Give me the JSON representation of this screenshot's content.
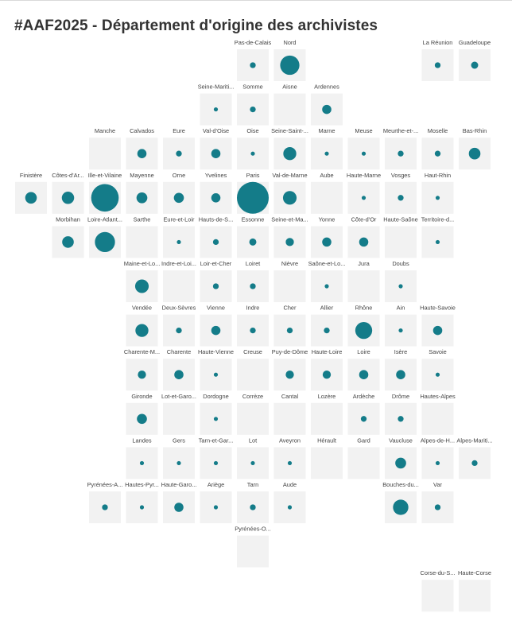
{
  "chart_data": {
    "type": "tile-grid-map",
    "title": "#AAF2025 - Département d'origine des archivistes",
    "colors": {
      "tile": "#f2f2f2",
      "bubble": "#147c89",
      "label": "#444444"
    },
    "cells": [
      {
        "name": "Pas-de-Calais",
        "col": 6,
        "row": 0,
        "value": 2
      },
      {
        "name": "Nord",
        "col": 7,
        "row": 0,
        "value": 22
      },
      {
        "name": "La Réunion",
        "col": 11,
        "row": 0,
        "value": 2
      },
      {
        "name": "Guadeloupe",
        "col": 12,
        "row": 0,
        "value": 3
      },
      {
        "name": "Seine-Mariti...",
        "col": 5,
        "row": 1,
        "value": 1
      },
      {
        "name": "Somme",
        "col": 6,
        "row": 1,
        "value": 2
      },
      {
        "name": "Aisne",
        "col": 7,
        "row": 1,
        "value": 0
      },
      {
        "name": "Ardennes",
        "col": 8,
        "row": 1,
        "value": 5
      },
      {
        "name": "Manche",
        "col": 2,
        "row": 2,
        "value": 0
      },
      {
        "name": "Calvados",
        "col": 3,
        "row": 2,
        "value": 5
      },
      {
        "name": "Eure",
        "col": 4,
        "row": 2,
        "value": 2
      },
      {
        "name": "Val-d'Oise",
        "col": 5,
        "row": 2,
        "value": 5
      },
      {
        "name": "Oise",
        "col": 6,
        "row": 2,
        "value": 1
      },
      {
        "name": "Seine-Saint-...",
        "col": 7,
        "row": 2,
        "value": 10
      },
      {
        "name": "Marne",
        "col": 8,
        "row": 2,
        "value": 1
      },
      {
        "name": "Meuse",
        "col": 9,
        "row": 2,
        "value": 1
      },
      {
        "name": "Meurthe-et-...",
        "col": 10,
        "row": 2,
        "value": 2
      },
      {
        "name": "Moselle",
        "col": 11,
        "row": 2,
        "value": 2
      },
      {
        "name": "Bas-Rhin",
        "col": 12,
        "row": 2,
        "value": 8
      },
      {
        "name": "Finistère",
        "col": 0,
        "row": 3,
        "value": 8
      },
      {
        "name": "Côtes-d'Ar...",
        "col": 1,
        "row": 3,
        "value": 9
      },
      {
        "name": "Ille-et-Vilaine",
        "col": 2,
        "row": 3,
        "value": 45
      },
      {
        "name": "Mayenne",
        "col": 3,
        "row": 3,
        "value": 7
      },
      {
        "name": "Orne",
        "col": 4,
        "row": 3,
        "value": 6
      },
      {
        "name": "Yvelines",
        "col": 5,
        "row": 3,
        "value": 5
      },
      {
        "name": "Paris",
        "col": 6,
        "row": 3,
        "value": 60
      },
      {
        "name": "Val-de-Marne",
        "col": 7,
        "row": 3,
        "value": 11
      },
      {
        "name": "Aube",
        "col": 8,
        "row": 3,
        "value": 0
      },
      {
        "name": "Haute-Marne",
        "col": 9,
        "row": 3,
        "value": 1
      },
      {
        "name": "Vosges",
        "col": 10,
        "row": 3,
        "value": 2
      },
      {
        "name": "Haut-Rhin",
        "col": 11,
        "row": 3,
        "value": 1
      },
      {
        "name": "Morbihan",
        "col": 1,
        "row": 4,
        "value": 8
      },
      {
        "name": "Loire-Atlant...",
        "col": 2,
        "row": 4,
        "value": 24
      },
      {
        "name": "Sarthe",
        "col": 3,
        "row": 4,
        "value": 0
      },
      {
        "name": "Eure-et-Loir",
        "col": 4,
        "row": 4,
        "value": 1
      },
      {
        "name": "Hauts-de-S...",
        "col": 5,
        "row": 4,
        "value": 2
      },
      {
        "name": "Essonne",
        "col": 6,
        "row": 4,
        "value": 3
      },
      {
        "name": "Seine-et-Ma...",
        "col": 7,
        "row": 4,
        "value": 4
      },
      {
        "name": "Yonne",
        "col": 8,
        "row": 4,
        "value": 5
      },
      {
        "name": "Côte-d'Or",
        "col": 9,
        "row": 4,
        "value": 5
      },
      {
        "name": "Haute-Saône",
        "col": 10,
        "row": 4,
        "value": 0
      },
      {
        "name": "Territoire-d...",
        "col": 11,
        "row": 4,
        "value": 1
      },
      {
        "name": "Maine-et-Lo...",
        "col": 3,
        "row": 5,
        "value": 11
      },
      {
        "name": "Indre-et-Loi...",
        "col": 4,
        "row": 5,
        "value": 0
      },
      {
        "name": "Loir-et-Cher",
        "col": 5,
        "row": 5,
        "value": 2
      },
      {
        "name": "Loiret",
        "col": 6,
        "row": 5,
        "value": 2
      },
      {
        "name": "Nièvre",
        "col": 7,
        "row": 5,
        "value": 0
      },
      {
        "name": "Saône-et-Lo...",
        "col": 8,
        "row": 5,
        "value": 1
      },
      {
        "name": "Jura",
        "col": 9,
        "row": 5,
        "value": 0
      },
      {
        "name": "Doubs",
        "col": 10,
        "row": 5,
        "value": 1
      },
      {
        "name": "Vendée",
        "col": 3,
        "row": 6,
        "value": 10
      },
      {
        "name": "Deux-Sèvres",
        "col": 4,
        "row": 6,
        "value": 2
      },
      {
        "name": "Vienne",
        "col": 5,
        "row": 6,
        "value": 5
      },
      {
        "name": "Indre",
        "col": 6,
        "row": 6,
        "value": 2
      },
      {
        "name": "Cher",
        "col": 7,
        "row": 6,
        "value": 2
      },
      {
        "name": "Allier",
        "col": 8,
        "row": 6,
        "value": 2
      },
      {
        "name": "Rhône",
        "col": 9,
        "row": 6,
        "value": 17
      },
      {
        "name": "Ain",
        "col": 10,
        "row": 6,
        "value": 1
      },
      {
        "name": "Haute-Savoie",
        "col": 11,
        "row": 6,
        "value": 5
      },
      {
        "name": "Charente-M...",
        "col": 3,
        "row": 7,
        "value": 4
      },
      {
        "name": "Charente",
        "col": 4,
        "row": 7,
        "value": 5
      },
      {
        "name": "Haute-Vienne",
        "col": 5,
        "row": 7,
        "value": 1
      },
      {
        "name": "Creuse",
        "col": 6,
        "row": 7,
        "value": 0
      },
      {
        "name": "Puy-de-Dôme",
        "col": 7,
        "row": 7,
        "value": 4
      },
      {
        "name": "Haute-Loire",
        "col": 8,
        "row": 7,
        "value": 4
      },
      {
        "name": "Loire",
        "col": 9,
        "row": 7,
        "value": 5
      },
      {
        "name": "Isère",
        "col": 10,
        "row": 7,
        "value": 5
      },
      {
        "name": "Savoie",
        "col": 11,
        "row": 7,
        "value": 1
      },
      {
        "name": "Gironde",
        "col": 3,
        "row": 8,
        "value": 6
      },
      {
        "name": "Lot-et-Garo...",
        "col": 4,
        "row": 8,
        "value": 0
      },
      {
        "name": "Dordogne",
        "col": 5,
        "row": 8,
        "value": 1
      },
      {
        "name": "Corrèze",
        "col": 6,
        "row": 8,
        "value": 0
      },
      {
        "name": "Cantal",
        "col": 7,
        "row": 8,
        "value": 0
      },
      {
        "name": "Lozère",
        "col": 8,
        "row": 8,
        "value": 0
      },
      {
        "name": "Ardèche",
        "col": 9,
        "row": 8,
        "value": 2
      },
      {
        "name": "Drôme",
        "col": 10,
        "row": 8,
        "value": 2
      },
      {
        "name": "Hautes-Alpes",
        "col": 11,
        "row": 8,
        "value": 0
      },
      {
        "name": "Landes",
        "col": 3,
        "row": 9,
        "value": 1
      },
      {
        "name": "Gers",
        "col": 4,
        "row": 9,
        "value": 1
      },
      {
        "name": "Tarn-et-Gar...",
        "col": 5,
        "row": 9,
        "value": 1
      },
      {
        "name": "Lot",
        "col": 6,
        "row": 9,
        "value": 1
      },
      {
        "name": "Aveyron",
        "col": 7,
        "row": 9,
        "value": 1
      },
      {
        "name": "Hérault",
        "col": 8,
        "row": 9,
        "value": 0
      },
      {
        "name": "Gard",
        "col": 9,
        "row": 9,
        "value": 0
      },
      {
        "name": "Vaucluse",
        "col": 10,
        "row": 9,
        "value": 7
      },
      {
        "name": "Alpes-de-H...",
        "col": 11,
        "row": 9,
        "value": 1
      },
      {
        "name": "Alpes-Mariti...",
        "col": 12,
        "row": 9,
        "value": 2
      },
      {
        "name": "Pyrénées-A...",
        "col": 2,
        "row": 10,
        "value": 2
      },
      {
        "name": "Hautes-Pyr...",
        "col": 3,
        "row": 10,
        "value": 1
      },
      {
        "name": "Haute-Garo...",
        "col": 4,
        "row": 10,
        "value": 5
      },
      {
        "name": "Ariège",
        "col": 5,
        "row": 10,
        "value": 1
      },
      {
        "name": "Tarn",
        "col": 6,
        "row": 10,
        "value": 2
      },
      {
        "name": "Aude",
        "col": 7,
        "row": 10,
        "value": 1
      },
      {
        "name": "Bouches-du...",
        "col": 10,
        "row": 10,
        "value": 14
      },
      {
        "name": "Var",
        "col": 11,
        "row": 10,
        "value": 2
      },
      {
        "name": "Pyrénées-O...",
        "col": 6,
        "row": 11,
        "value": 0
      },
      {
        "name": "Corse-du-S...",
        "col": 11,
        "row": 12,
        "value": 0
      },
      {
        "name": "Haute-Corse",
        "col": 12,
        "row": 12,
        "value": 0
      }
    ]
  }
}
